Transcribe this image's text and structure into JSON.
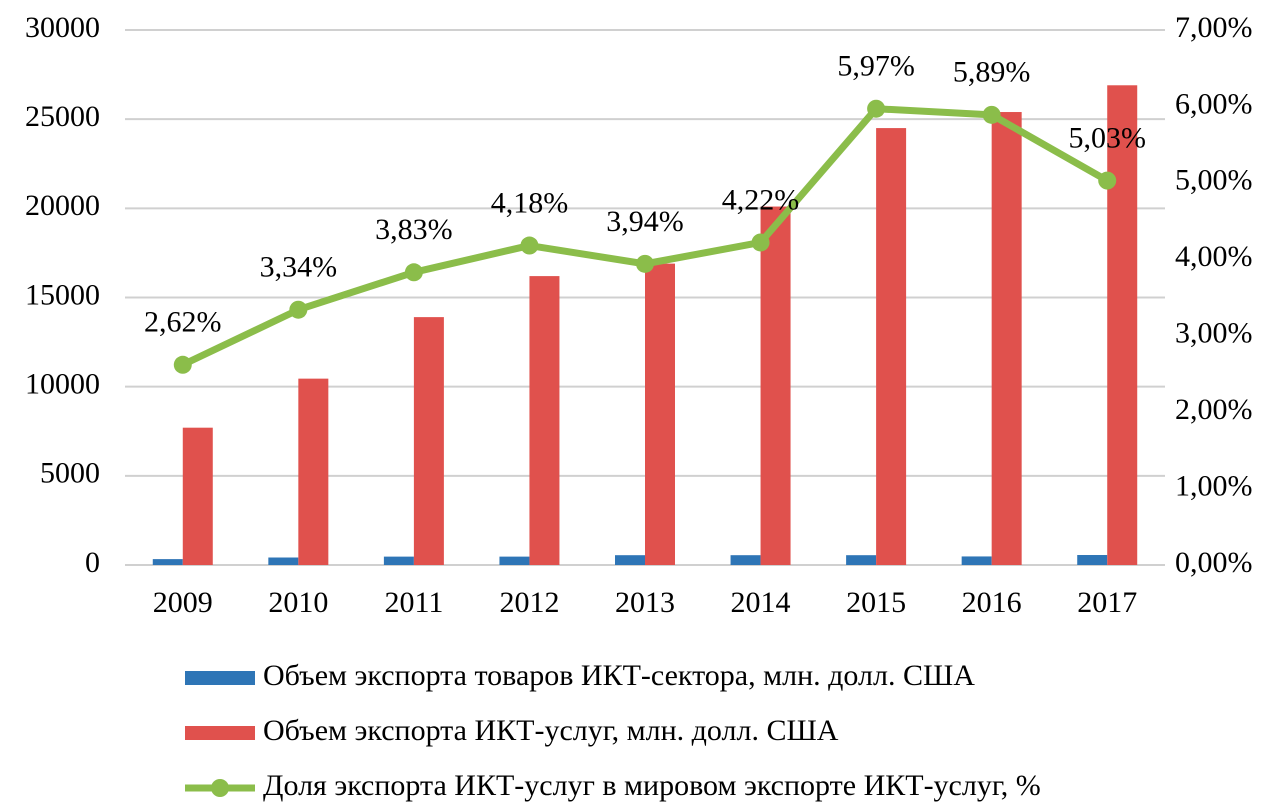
{
  "chart_data": {
    "type": "bar-line",
    "categories": [
      "2009",
      "2010",
      "2011",
      "2012",
      "2013",
      "2014",
      "2015",
      "2016",
      "2017"
    ],
    "series": [
      {
        "name": "Объем экспорта товаров ИКТ-сектора, млн. долл. США",
        "color": "#2e75b6",
        "type": "bar",
        "values": [
          330,
          420,
          470,
          470,
          550,
          550,
          550,
          480,
          560
        ]
      },
      {
        "name": "Объем экспорта ИКТ-услуг, млн. долл. США",
        "color": "#e0514d",
        "type": "bar",
        "values": [
          7700,
          10450,
          13900,
          16200,
          16900,
          20100,
          24500,
          25400,
          26900
        ]
      },
      {
        "name": "Доля экспорта ИКТ-услуг в мировом экспорте ИКТ-услуг, %",
        "color": "#8bbd4a",
        "type": "line",
        "axis": "y2",
        "values": [
          2.62,
          3.34,
          3.83,
          4.18,
          3.94,
          4.22,
          5.97,
          5.89,
          5.03
        ],
        "value_labels": [
          "2,62%",
          "3,34%",
          "3,83%",
          "4,18%",
          "3,94%",
          "4,22%",
          "5,97%",
          "5,89%",
          "5,03%"
        ]
      }
    ],
    "ylim": [
      0,
      30000
    ],
    "yticks": [
      0,
      5000,
      10000,
      15000,
      20000,
      25000,
      30000
    ],
    "y2lim": [
      0,
      7
    ],
    "y2ticks": [
      {
        "value": 0,
        "label": "0,00%"
      },
      {
        "value": 1,
        "label": "1,00%"
      },
      {
        "value": 2,
        "label": "2,00%"
      },
      {
        "value": 3,
        "label": "3,00%"
      },
      {
        "value": 4,
        "label": "4,00%"
      },
      {
        "value": 5,
        "label": "5,00%"
      },
      {
        "value": 6,
        "label": "6,00%"
      },
      {
        "value": 7,
        "label": "7,00%"
      }
    ],
    "grid": true,
    "legend": "bottom"
  }
}
